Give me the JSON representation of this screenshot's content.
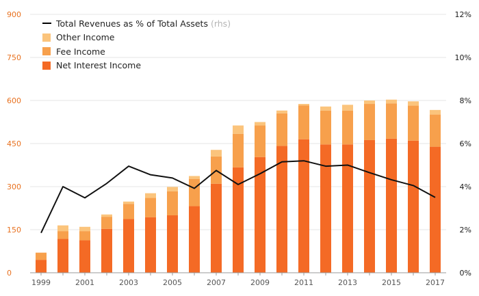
{
  "chart_data": {
    "type": "bar",
    "stacked": true,
    "categories": [
      "1999",
      "2000",
      "2001",
      "2002",
      "2003",
      "2004",
      "2005",
      "2006",
      "2007",
      "2008",
      "2009",
      "2010",
      "2011",
      "2012",
      "2013",
      "2014",
      "2015",
      "2016",
      "2017"
    ],
    "x_tick_labels": [
      "1999",
      "2001",
      "2003",
      "2005",
      "2007",
      "2009",
      "2011",
      "2013",
      "2015",
      "2017"
    ],
    "series": [
      {
        "name": "Net Interest Income",
        "color": "#f46a25",
        "values": [
          45,
          118,
          113,
          153,
          187,
          193,
          200,
          232,
          310,
          367,
          403,
          442,
          465,
          447,
          447,
          462,
          467,
          460,
          439
        ]
      },
      {
        "name": "Fee Income",
        "color": "#f7a04c",
        "values": [
          25,
          27,
          32,
          42,
          53,
          68,
          84,
          95,
          95,
          117,
          110,
          113,
          118,
          118,
          118,
          126,
          123,
          122,
          112
        ]
      },
      {
        "name": "Other Income",
        "color": "#fbc47c",
        "values": [
          0,
          20,
          15,
          8,
          8,
          16,
          15,
          10,
          23,
          29,
          12,
          10,
          5,
          14,
          20,
          12,
          13,
          15,
          16
        ]
      }
    ],
    "line_series": {
      "name": "Total Revenues as % of Total Assets",
      "axis": "rhs",
      "color": "#111111",
      "values": [
        1.85,
        4.0,
        3.48,
        4.15,
        4.95,
        4.55,
        4.4,
        3.92,
        4.75,
        4.1,
        4.6,
        5.15,
        5.2,
        4.95,
        5.0,
        4.65,
        4.32,
        4.05,
        3.5
      ]
    },
    "y_left": {
      "ylim": [
        0,
        900
      ],
      "ticks": [
        "0",
        "150",
        "300",
        "450",
        "600",
        "750",
        "900"
      ],
      "tick_values": [
        0,
        150,
        300,
        450,
        600,
        750,
        900
      ],
      "color": "#e8711f"
    },
    "y_right": {
      "ylim": [
        0,
        12
      ],
      "ticks": [
        "0%",
        "2%",
        "4%",
        "6%",
        "8%",
        "10%",
        "12%"
      ],
      "tick_values": [
        0,
        2,
        4,
        6,
        8,
        10,
        12
      ]
    },
    "grid": true,
    "legend_position": "top-left"
  },
  "legend": {
    "line_label": "Total Revenues as % of Total Assets",
    "line_suffix": "(rhs)",
    "other_label": "Other Income",
    "fee_label": "Fee Income",
    "nii_label": "Net Interest Income"
  }
}
